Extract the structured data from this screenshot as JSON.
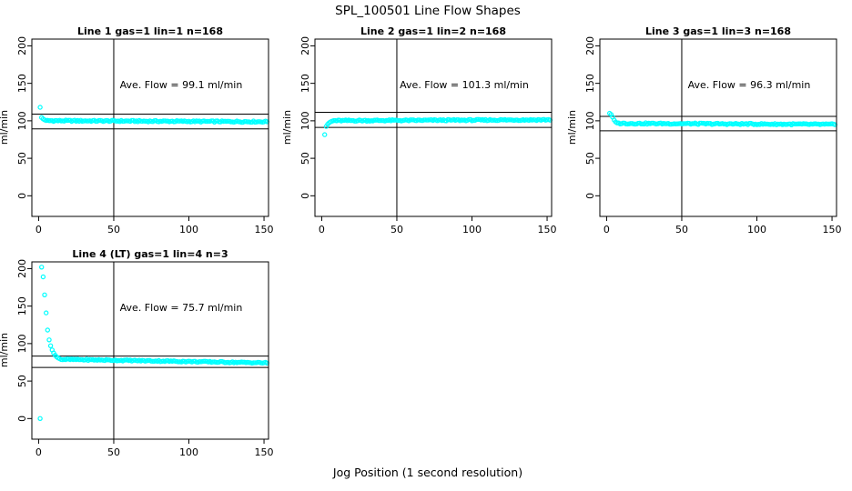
{
  "figure": {
    "title": "SPL_100501  Line Flow Shapes",
    "xlabel": "Jog Position (1 second resolution)",
    "point_color": "#00ffff",
    "axis_color": "#000000",
    "background": "#ffffff"
  },
  "chart_data": [
    {
      "type": "scatter",
      "title": "Line 1 gas=1 lin=1 n=168",
      "annotation": "Ave. Flow =  99.1  ml/min",
      "ave_flow_ml_min": 99.1,
      "n": 168,
      "ylabel": "ml/min",
      "x_ticks": [
        0,
        50,
        100,
        150
      ],
      "y_ticks": [
        0,
        50,
        100,
        150,
        200
      ],
      "xlim": [
        -4.5,
        153
      ],
      "ylim": [
        -27.5,
        209
      ],
      "vline_x": 50,
      "hlines": [
        109.0,
        89.2
      ],
      "outliers": [
        [
          1,
          118
        ]
      ],
      "transient": [
        [
          2,
          104.5
        ],
        [
          3,
          102.5
        ],
        [
          4,
          101.2
        ],
        [
          5,
          100.4
        ]
      ],
      "plateau": {
        "x_from": 6,
        "x_to": 152,
        "y_start": 100.2,
        "y_end": 98.8,
        "jitter": 0.9
      }
    },
    {
      "type": "scatter",
      "title": "Line 2 gas=1 lin=2 n=168",
      "annotation": "Ave. Flow =  101.3  ml/min",
      "ave_flow_ml_min": 101.3,
      "n": 168,
      "ylabel": "ml/min",
      "x_ticks": [
        0,
        50,
        100,
        150
      ],
      "y_ticks": [
        0,
        50,
        100,
        150,
        200
      ],
      "xlim": [
        -4.5,
        153
      ],
      "ylim": [
        -27.5,
        209
      ],
      "vline_x": 50,
      "hlines": [
        111.4,
        91.2
      ],
      "outliers": [
        [
          2,
          81.5
        ]
      ],
      "transient": [
        [
          3,
          92.5
        ],
        [
          4,
          95.5
        ],
        [
          5,
          97.5
        ],
        [
          6,
          98.8
        ],
        [
          7,
          99.6
        ]
      ],
      "plateau": {
        "x_from": 8,
        "x_to": 152,
        "y_start": 100.2,
        "y_end": 101.4,
        "jitter": 0.9
      }
    },
    {
      "type": "scatter",
      "title": "Line 3 gas=1 lin=3 n=168",
      "annotation": "Ave. Flow =  96.3  ml/min",
      "ave_flow_ml_min": 96.3,
      "n": 168,
      "ylabel": "ml/min",
      "x_ticks": [
        0,
        50,
        100,
        150
      ],
      "y_ticks": [
        0,
        50,
        100,
        150,
        200
      ],
      "xlim": [
        -4.5,
        153
      ],
      "ylim": [
        -27.5,
        209
      ],
      "vline_x": 50,
      "hlines": [
        105.9,
        86.7
      ],
      "outliers": [],
      "transient": [
        [
          2,
          110
        ],
        [
          3,
          108.5
        ],
        [
          4,
          105
        ],
        [
          5,
          101
        ],
        [
          6,
          98.5
        ],
        [
          7,
          97.2
        ]
      ],
      "plateau": {
        "x_from": 8,
        "x_to": 152,
        "y_start": 96.6,
        "y_end": 95.2,
        "jitter": 0.9
      }
    },
    {
      "type": "scatter",
      "title": "Line 4 (LT) gas=1 lin=4 n=3",
      "annotation": "Ave. Flow =  75.7  ml/min",
      "ave_flow_ml_min": 75.7,
      "n": 3,
      "ylabel": "ml/min",
      "x_ticks": [
        0,
        50,
        100,
        150
      ],
      "y_ticks": [
        0,
        50,
        100,
        150,
        200
      ],
      "xlim": [
        -4.5,
        153
      ],
      "ylim": [
        -27.5,
        209
      ],
      "vline_x": 50,
      "hlines": [
        83.3,
        68.1
      ],
      "outliers": [
        [
          1,
          0
        ]
      ],
      "transient": [
        [
          2,
          202
        ],
        [
          3,
          189
        ],
        [
          4,
          165
        ],
        [
          5,
          141
        ],
        [
          6,
          118
        ],
        [
          7,
          105
        ],
        [
          8,
          97
        ],
        [
          9,
          91.5
        ],
        [
          10,
          87.5
        ],
        [
          11,
          84.5
        ],
        [
          12,
          82.3
        ],
        [
          13,
          80.8
        ],
        [
          14,
          79.8
        ]
      ],
      "plateau": {
        "x_from": 15,
        "x_to": 152,
        "y_start": 79.0,
        "y_end": 74.3,
        "jitter": 0.8
      }
    }
  ]
}
